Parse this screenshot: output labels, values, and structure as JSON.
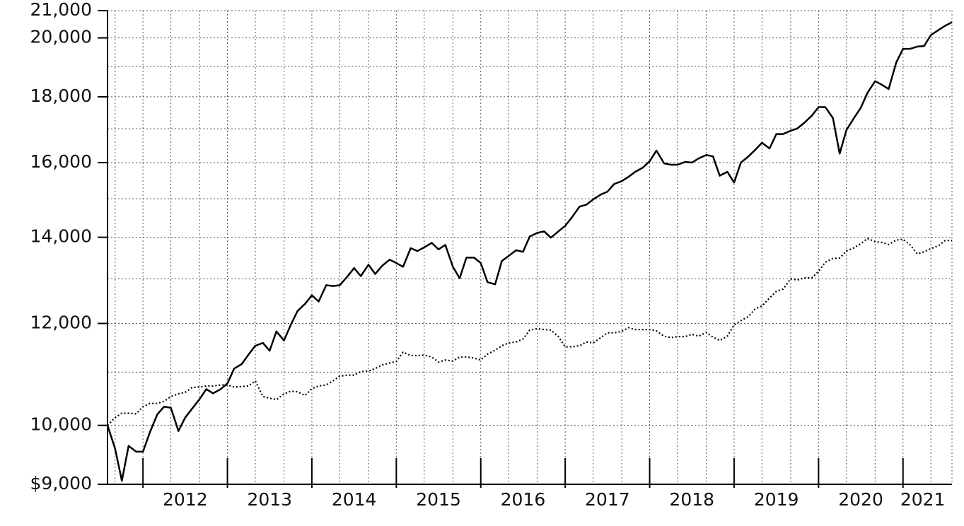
{
  "chart_data": {
    "type": "line",
    "log_scale_y": true,
    "grid": true,
    "xlim": [
      2011.58,
      2021.58
    ],
    "ylim": [
      9000,
      21000
    ],
    "xticks": [
      2012,
      2013,
      2014,
      2015,
      2016,
      2017,
      2018,
      2019,
      2020,
      2021
    ],
    "x_minor_ticks": [
      2011.67,
      2012,
      2012.33,
      2012.67,
      2013,
      2013.33,
      2013.67,
      2014,
      2014.33,
      2014.67,
      2015,
      2015.33,
      2015.67,
      2016,
      2016.33,
      2016.67,
      2017,
      2017.33,
      2017.67,
      2018,
      2018.33,
      2018.67,
      2019,
      2019.33,
      2019.67,
      2020,
      2020.33,
      2020.67,
      2021,
      2021.33
    ],
    "yticks": [
      {
        "value": 9000,
        "label": "$9,000"
      },
      {
        "value": 10000,
        "label": "10,000"
      },
      {
        "value": 12000,
        "label": "12,000"
      },
      {
        "value": 14000,
        "label": "14,000"
      },
      {
        "value": 16000,
        "label": "16,000"
      },
      {
        "value": 18000,
        "label": "18,000"
      },
      {
        "value": 20000,
        "label": "20,000"
      },
      {
        "value": 21000,
        "label": "21,000"
      }
    ],
    "y_minor_ticks": [
      11000,
      13000,
      15000,
      17000,
      19000
    ],
    "x": [
      2011.58,
      2011.67,
      2011.75,
      2011.83,
      2011.92,
      2012,
      2012.08,
      2012.17,
      2012.25,
      2012.33,
      2012.42,
      2012.5,
      2012.58,
      2012.67,
      2012.75,
      2012.83,
      2012.92,
      2013,
      2013.08,
      2013.17,
      2013.25,
      2013.33,
      2013.42,
      2013.5,
      2013.58,
      2013.67,
      2013.75,
      2013.83,
      2013.92,
      2014,
      2014.08,
      2014.17,
      2014.25,
      2014.33,
      2014.42,
      2014.5,
      2014.58,
      2014.67,
      2014.75,
      2014.83,
      2014.92,
      2015,
      2015.08,
      2015.17,
      2015.25,
      2015.33,
      2015.42,
      2015.5,
      2015.58,
      2015.67,
      2015.75,
      2015.83,
      2015.92,
      2016,
      2016.08,
      2016.17,
      2016.25,
      2016.33,
      2016.42,
      2016.5,
      2016.58,
      2016.67,
      2016.75,
      2016.83,
      2016.92,
      2017,
      2017.08,
      2017.17,
      2017.25,
      2017.33,
      2017.42,
      2017.5,
      2017.58,
      2017.67,
      2017.75,
      2017.83,
      2017.92,
      2018,
      2018.08,
      2018.17,
      2018.25,
      2018.33,
      2018.42,
      2018.5,
      2018.58,
      2018.67,
      2018.75,
      2018.83,
      2018.92,
      2019,
      2019.08,
      2019.17,
      2019.25,
      2019.33,
      2019.42,
      2019.5,
      2019.58,
      2019.67,
      2019.75,
      2019.83,
      2019.92,
      2020,
      2020.08,
      2020.17,
      2020.25,
      2020.33,
      2020.42,
      2020.5,
      2020.58,
      2020.67,
      2020.75,
      2020.83,
      2020.92,
      2021,
      2021.08,
      2021.17,
      2021.25,
      2021.33,
      2021.42,
      2021.5,
      2021.58
    ],
    "series": [
      {
        "color": "#000000",
        "style": "solid",
        "values": [
          10000,
          9590,
          9057,
          9640,
          9540,
          9540,
          9870,
          10200,
          10340,
          10320,
          9900,
          10140,
          10300,
          10480,
          10670,
          10590,
          10670,
          10780,
          11070,
          11160,
          11350,
          11530,
          11590,
          11430,
          11830,
          11640,
          11970,
          12270,
          12430,
          12620,
          12480,
          12850,
          12830,
          12850,
          13050,
          13250,
          13060,
          13330,
          13110,
          13300,
          13450,
          13370,
          13280,
          13730,
          13660,
          13750,
          13860,
          13700,
          13810,
          13280,
          13010,
          13500,
          13500,
          13370,
          12920,
          12870,
          13420,
          13540,
          13680,
          13640,
          14020,
          14110,
          14150,
          13990,
          14150,
          14290,
          14510,
          14790,
          14840,
          14980,
          15110,
          15190,
          15400,
          15480,
          15600,
          15740,
          15860,
          16040,
          16350,
          15980,
          15940,
          15940,
          16020,
          16000,
          16120,
          16220,
          16180,
          15630,
          15740,
          15440,
          16000,
          16180,
          16370,
          16580,
          16410,
          16840,
          16840,
          16940,
          17010,
          17180,
          17400,
          17670,
          17670,
          17330,
          16260,
          16960,
          17330,
          17650,
          18130,
          18510,
          18390,
          18250,
          19140,
          19610,
          19610,
          19690,
          19710,
          20100,
          20280,
          20440,
          20570
        ]
      },
      {
        "color": "#000000",
        "style": "dotted",
        "values": [
          10000,
          10140,
          10220,
          10220,
          10210,
          10340,
          10400,
          10400,
          10440,
          10530,
          10580,
          10610,
          10700,
          10710,
          10730,
          10730,
          10750,
          10750,
          10710,
          10720,
          10730,
          10830,
          10530,
          10500,
          10470,
          10580,
          10630,
          10620,
          10550,
          10680,
          10730,
          10750,
          10830,
          10920,
          10940,
          10940,
          11010,
          11020,
          11070,
          11140,
          11180,
          11210,
          11400,
          11330,
          11330,
          11340,
          11300,
          11200,
          11240,
          11220,
          11300,
          11300,
          11280,
          11240,
          11360,
          11440,
          11530,
          11590,
          11610,
          11670,
          11860,
          11890,
          11870,
          11860,
          11720,
          11510,
          11510,
          11530,
          11610,
          11590,
          11700,
          11800,
          11800,
          11830,
          11910,
          11870,
          11870,
          11870,
          11840,
          11730,
          11700,
          11720,
          11720,
          11770,
          11730,
          11810,
          11710,
          11640,
          11730,
          11970,
          12060,
          12150,
          12320,
          12380,
          12560,
          12710,
          12760,
          13000,
          12970,
          13020,
          13020,
          13170,
          13390,
          13480,
          13490,
          13660,
          13740,
          13840,
          13970,
          13890,
          13870,
          13820,
          13930,
          13950,
          13820,
          13590,
          13640,
          13720,
          13790,
          13920,
          13920
        ]
      }
    ]
  }
}
